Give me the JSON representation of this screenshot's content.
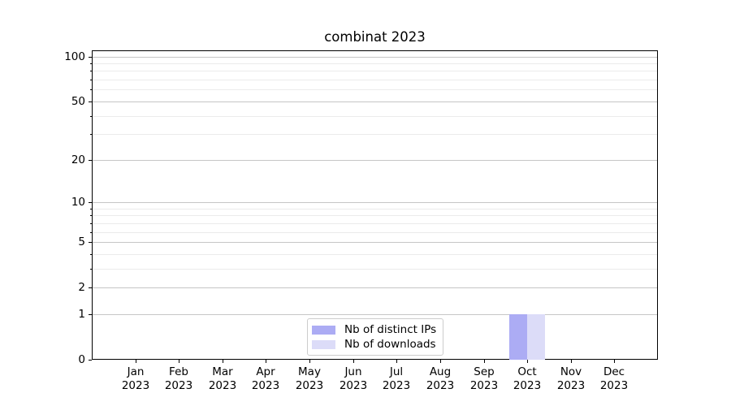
{
  "chart_data": {
    "type": "bar",
    "title": "combinat 2023",
    "categories": [
      "Jan",
      "Feb",
      "Mar",
      "Apr",
      "May",
      "Jun",
      "Jul",
      "Aug",
      "Sep",
      "Oct",
      "Nov",
      "Dec"
    ],
    "tick_year": "2023",
    "series": [
      {
        "name": "Nb of distinct IPs",
        "color": "#acacf4",
        "values": [
          0,
          0,
          0,
          0,
          0,
          0,
          0,
          0,
          0,
          1,
          0,
          0
        ]
      },
      {
        "name": "Nb of downloads",
        "color": "#dcdcf8",
        "values": [
          0,
          0,
          0,
          0,
          0,
          0,
          0,
          0,
          0,
          1,
          0,
          0
        ]
      }
    ],
    "xlabel": "",
    "ylabel": "",
    "y_scale": "log1p",
    "y_major_ticks": [
      0,
      1,
      2,
      5,
      10,
      20,
      50,
      100
    ],
    "y_minor_ticks": [
      3,
      4,
      6,
      7,
      8,
      9,
      30,
      40,
      60,
      70,
      80,
      90
    ],
    "ylim": [
      0,
      110
    ],
    "grid": true,
    "legend_position": "lower center"
  }
}
